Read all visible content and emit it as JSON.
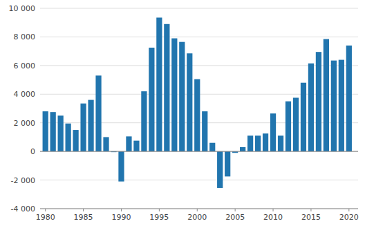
{
  "chart_data": {
    "type": "bar",
    "x": [
      1980,
      1981,
      1982,
      1983,
      1984,
      1985,
      1986,
      1987,
      1988,
      1989,
      1990,
      1991,
      1992,
      1993,
      1994,
      1995,
      1996,
      1997,
      1998,
      1999,
      2000,
      2001,
      2002,
      2003,
      2004,
      2005,
      2006,
      2007,
      2008,
      2009,
      2010,
      2011,
      2012,
      2013,
      2014,
      2015,
      2016,
      2017,
      2018,
      2019,
      2020
    ],
    "values": [
      2800,
      2750,
      2500,
      1950,
      1500,
      3350,
      3600,
      5300,
      1000,
      -50,
      -2100,
      1050,
      750,
      4200,
      7250,
      9350,
      8900,
      7900,
      7650,
      6850,
      5050,
      2800,
      600,
      -2550,
      -1750,
      -100,
      300,
      1100,
      1100,
      1250,
      2650,
      1100,
      3500,
      3750,
      4800,
      6150,
      6950,
      7850,
      6350,
      6400,
      7400
    ],
    "color": "#2175ae",
    "xlim": [
      1979.3,
      2021.2
    ],
    "xticks": [
      1980,
      1985,
      1990,
      1995,
      2000,
      2005,
      2010,
      2015,
      2020
    ],
    "ylim": [
      -4000,
      10000
    ],
    "yticks": [
      {
        "value": -4000,
        "label": "-4 000"
      },
      {
        "value": -2000,
        "label": "-2 000"
      },
      0,
      {
        "value": 2000,
        "label": "2 000"
      },
      {
        "value": 4000,
        "label": "4 000"
      },
      {
        "value": 6000,
        "label": "6 000"
      },
      {
        "value": 8000,
        "label": "8 000"
      },
      {
        "value": 10000,
        "label": "10 000"
      }
    ],
    "grid": true
  }
}
